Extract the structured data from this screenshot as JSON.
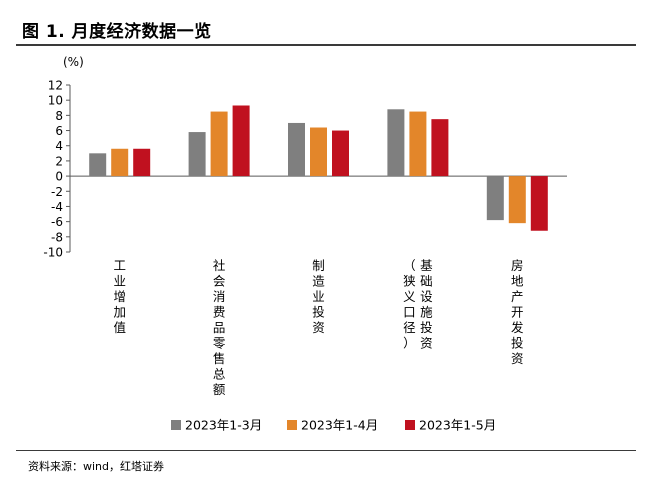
{
  "figure": {
    "title": "图 1. 月度经济数据一览",
    "source": "资料来源：wind，红塔证券"
  },
  "chart_data": {
    "type": "bar",
    "ylabel": "(%)",
    "ylim": [
      -10,
      12
    ],
    "yticks": [
      12,
      10,
      8,
      6,
      4,
      2,
      0,
      -2,
      -4,
      -6,
      -8,
      -10
    ],
    "grid": false,
    "legend_position": "bottom",
    "categories": [
      "工业增加值",
      "社会消费品零售总额",
      "制造业投资",
      "基础设施投资（狭义口径）",
      "房地产开发投资"
    ],
    "category_lines": [
      [
        "工业增加值"
      ],
      [
        "社会消费品零售总额"
      ],
      [
        "制造业投资"
      ],
      [
        "（狭义口径）",
        "基础设施投资"
      ],
      [
        "房地产开发投资"
      ]
    ],
    "series": [
      {
        "name": "2023年1-3月",
        "color": "#7f7f7f",
        "values": [
          3.0,
          5.8,
          7.0,
          8.8,
          -5.8
        ]
      },
      {
        "name": "2023年1-4月",
        "color": "#e3862a",
        "values": [
          3.6,
          8.5,
          6.4,
          8.5,
          -6.2
        ]
      },
      {
        "name": "2023年1-5月",
        "color": "#c0111f",
        "values": [
          3.6,
          9.3,
          6.0,
          7.5,
          -7.2
        ]
      }
    ]
  }
}
